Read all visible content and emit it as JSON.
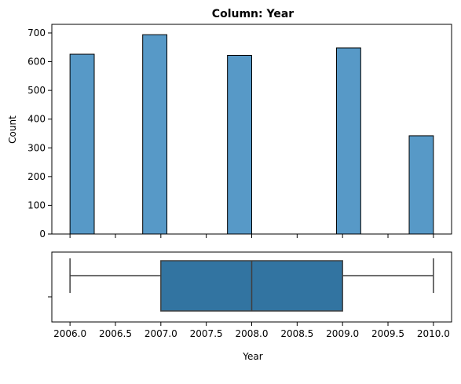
{
  "chart_data": [
    {
      "type": "bar",
      "title": "Column: Year",
      "ylabel": "Count",
      "xlabel": "",
      "xlim": [
        2005.8,
        2010.2
      ],
      "ylim": [
        0,
        730
      ],
      "yticks": [
        0,
        100,
        200,
        300,
        400,
        500,
        600,
        700
      ],
      "xticks": [
        2006.0,
        2006.5,
        2007.0,
        2007.5,
        2008.0,
        2008.5,
        2009.0,
        2009.5,
        2010.0
      ],
      "bin_width": 0.2667,
      "bars": [
        {
          "x_start": 2006.0,
          "count": 626
        },
        {
          "x_start": 2006.8,
          "count": 694
        },
        {
          "x_start": 2007.7333,
          "count": 622
        },
        {
          "x_start": 2008.9333,
          "count": 648
        },
        {
          "x_start": 2009.7333,
          "count": 342
        }
      ],
      "grid": false,
      "bar_color": "#5799c7"
    },
    {
      "type": "box",
      "xlabel": "Year",
      "xlim": [
        2005.8,
        2010.2
      ],
      "xticks": [
        2006.0,
        2006.5,
        2007.0,
        2007.5,
        2008.0,
        2008.5,
        2009.0,
        2009.5,
        2010.0
      ],
      "xtick_labels": [
        "2006.0",
        "2006.5",
        "2007.0",
        "2007.5",
        "2008.0",
        "2008.5",
        "2009.0",
        "2009.5",
        "2010.0"
      ],
      "min": 2006.0,
      "q1": 2007.0,
      "median": 2008.0,
      "q3": 2009.0,
      "max": 2010.0,
      "box_color": "#3274a1"
    }
  ]
}
